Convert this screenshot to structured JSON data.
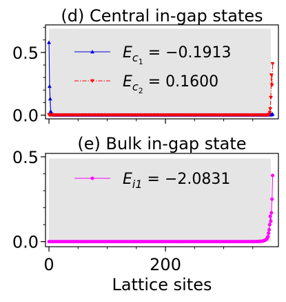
{
  "chart_data": [
    {
      "type": "line",
      "title": "(d) Central in-gap states",
      "xlabel": "",
      "ylabel": "",
      "xlim": [
        -6,
        394
      ],
      "ylim": [
        -0.03,
        0.72
      ],
      "xticks": [
        0,
        200
      ],
      "xtick_labels": [
        "",
        ""
      ],
      "yticks": [
        0.0,
        0.5
      ],
      "ytick_labels": [
        "0.0",
        "0.5"
      ],
      "shaded_region": {
        "x": [
          0,
          381
        ],
        "y": [
          0,
          0.69
        ],
        "color": "#e5e5e5"
      },
      "legend_position": "top-center",
      "series": [
        {
          "name": "E_{c_1} = -0.1913",
          "legend_main": "E",
          "legend_sub": "c",
          "legend_subsub": "1",
          "legend_value": " = −0.1913",
          "color": "#0000dd",
          "marker": "triangle-up",
          "linestyle": "solid",
          "points": [
            [
              0,
              0.58
            ],
            [
              1,
              0.23
            ],
            [
              2,
              0.13
            ],
            [
              3,
              0.03
            ],
            [
              4,
              0.015
            ],
            [
              5,
              0.008
            ],
            [
              6,
              0.004
            ],
            [
              7,
              0.002
            ],
            [
              8,
              0.001
            ],
            [
              380,
              0.001
            ],
            [
              381,
              0.002
            ],
            [
              382,
              0.004
            ],
            [
              383,
              0.006
            ],
            [
              384,
              0.008
            ]
          ]
        },
        {
          "name": "E_{c_2} = 0.1600",
          "legend_main": "E",
          "legend_sub": "c",
          "legend_subsub": "2",
          "legend_value": " = 0.1600",
          "color": "#ff0000",
          "marker": "triangle-down",
          "linestyle": "dashdot",
          "points": [
            [
              0,
              0.004
            ],
            [
              1,
              0.003
            ],
            [
              2,
              0.002
            ],
            [
              3,
              0.001
            ],
            [
              375,
              0.001
            ],
            [
              376,
              0.002
            ],
            [
              377,
              0.003
            ],
            [
              378,
              0.006
            ],
            [
              379,
              0.02
            ],
            [
              380,
              0.05
            ],
            [
              381,
              0.14
            ],
            [
              382,
              0.32
            ],
            [
              383,
              0.24
            ],
            [
              384,
              0.41
            ]
          ]
        }
      ]
    },
    {
      "type": "line",
      "title": "(e) Bulk in-gap state",
      "xlabel": "Lattice sites",
      "ylabel": "",
      "xlim": [
        -6,
        394
      ],
      "ylim": [
        -0.03,
        0.52
      ],
      "xticks": [
        0,
        200
      ],
      "xtick_labels": [
        "0",
        "200"
      ],
      "yticks": [
        0.0,
        0.5
      ],
      "ytick_labels": [
        "0.0",
        "0.5"
      ],
      "shaded_region": {
        "x": [
          0,
          381
        ],
        "y": [
          0,
          0.49
        ],
        "color": "#e5e5e5"
      },
      "legend_position": "top-center",
      "series": [
        {
          "name": "E_{i1} = -2.0831",
          "legend_main": "E",
          "legend_sub": "i1",
          "legend_subsub": "",
          "legend_value": " = −2.0831",
          "color": "#ff00ff",
          "marker": "circle",
          "linestyle": "solid",
          "points": [
            [
              0,
              0.0
            ],
            [
              350,
              0.0
            ],
            [
              360,
              0.001
            ],
            [
              365,
              0.002
            ],
            [
              368,
              0.004
            ],
            [
              370,
              0.006
            ],
            [
              372,
              0.01
            ],
            [
              374,
              0.016
            ],
            [
              376,
              0.03
            ],
            [
              377,
              0.05
            ],
            [
              378,
              0.07
            ],
            [
              379,
              0.1
            ],
            [
              380,
              0.15
            ],
            [
              381,
              0.12
            ],
            [
              382,
              0.17
            ],
            [
              383,
              0.25
            ],
            [
              384,
              0.39
            ]
          ]
        }
      ]
    }
  ]
}
